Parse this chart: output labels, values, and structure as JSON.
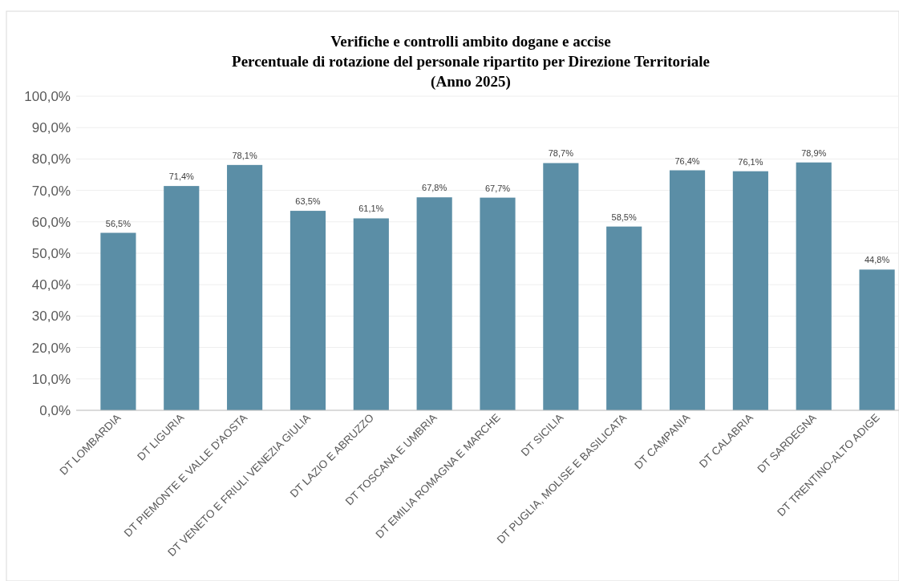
{
  "chart_data": {
    "type": "bar",
    "title": "Verifiche e controlli ambito dogane e accise\nPercentuale di rotazione del personale ripartito per Direzione Territoriale\n(Anno 2025)",
    "categories": [
      "DT LOMBARDIA",
      "DT LIGURIA",
      "DT PIEMONTE E VALLE D'AOSTA",
      "DT VENETO E FRIULI VENEZIA GIULIA",
      "DT LAZIO E ABRUZZO",
      "DT TOSCANA E UMBRIA",
      "DT EMILIA ROMAGNA E MARCHE",
      "DT SICILIA",
      "DT PUGLIA, MOLISE E BASILICATA",
      "DT CAMPANIA",
      "DT CALABRIA",
      "DT SARDEGNA",
      "DT TRENTINO-ALTO ADIGE"
    ],
    "values": [
      56.5,
      71.4,
      78.1,
      63.5,
      61.1,
      67.8,
      67.7,
      78.7,
      58.5,
      76.4,
      76.1,
      78.9,
      44.8
    ],
    "value_labels": [
      "56,5%",
      "71,4%",
      "78,1%",
      "63,5%",
      "61,1%",
      "67,8%",
      "67,7%",
      "78,7%",
      "58,5%",
      "76,4%",
      "76,1%",
      "78,9%",
      "44,8%"
    ],
    "color": "#5b8ea6",
    "ylim": [
      0,
      100
    ],
    "yticks": [
      {
        "value": 0,
        "label": "0,0%"
      },
      {
        "value": 10,
        "label": "10,0%"
      },
      {
        "value": 20,
        "label": "20,0%"
      },
      {
        "value": 30,
        "label": "30,0%"
      },
      {
        "value": 40,
        "label": "40,0%"
      },
      {
        "value": 50,
        "label": "50,0%"
      },
      {
        "value": 60,
        "label": "60,0%"
      },
      {
        "value": 70,
        "label": "70,0%"
      },
      {
        "value": 80,
        "label": "80,0%"
      },
      {
        "value": 90,
        "label": "90,0%"
      },
      {
        "value": 100,
        "label": "100,0%"
      }
    ],
    "grid": "y"
  }
}
